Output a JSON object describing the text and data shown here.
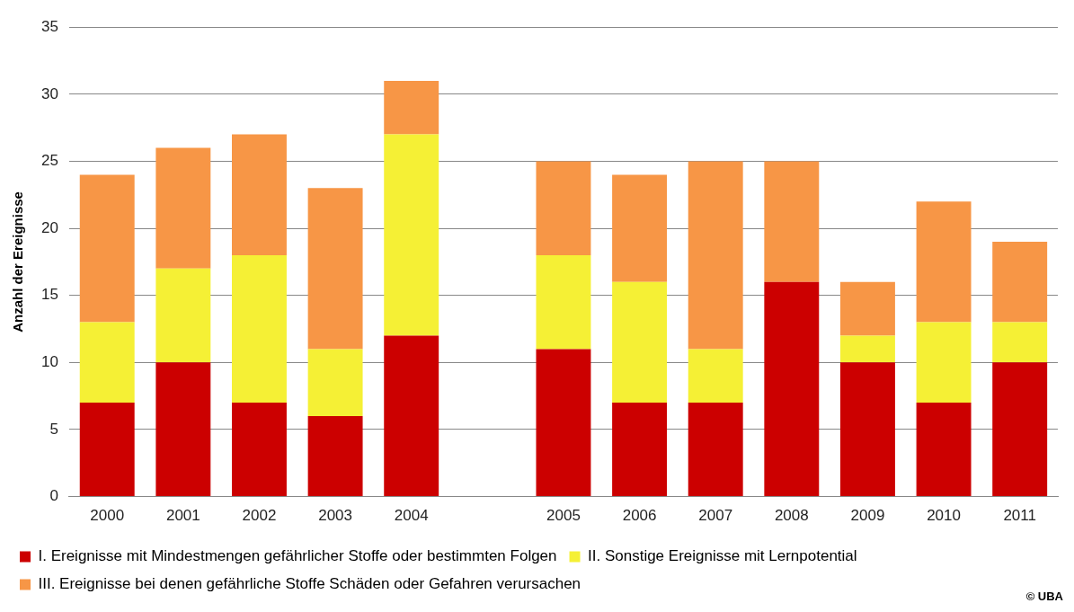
{
  "chart_data": {
    "type": "bar",
    "stacked": true,
    "ylabel": "Anzahl der Ereignisse",
    "categories": [
      "2000",
      "2001",
      "2002",
      "2003",
      "2004",
      null,
      "2005",
      "2006",
      "2007",
      "2008",
      "2009",
      "2010",
      "2011"
    ],
    "series": [
      {
        "name": "I. Ereignisse mit Mindestmengen gefährlicher Stoffe oder bestimmten Folgen",
        "color": "#cc0000",
        "values": [
          7,
          10,
          7,
          6,
          12,
          null,
          11,
          7,
          7,
          16,
          10,
          7,
          10
        ]
      },
      {
        "name": "II. Sonstige Ereignisse mit Lernpotential",
        "color": "#f5f035",
        "values": [
          6,
          7,
          11,
          5,
          15,
          null,
          7,
          9,
          4,
          0,
          2,
          6,
          3
        ]
      },
      {
        "name": "III. Ereignisse bei denen gefährliche Stoffe Schäden oder Gefahren verursachen",
        "color": "#f79646",
        "values": [
          11,
          9,
          9,
          12,
          4,
          null,
          7,
          8,
          14,
          9,
          4,
          9,
          6
        ]
      }
    ],
    "ylim": [
      0,
      35
    ],
    "yticks": [
      0,
      5,
      10,
      15,
      20,
      25,
      30,
      35
    ],
    "grid": "y",
    "legend": "bottom",
    "annotations": [
      "© UBA"
    ]
  }
}
